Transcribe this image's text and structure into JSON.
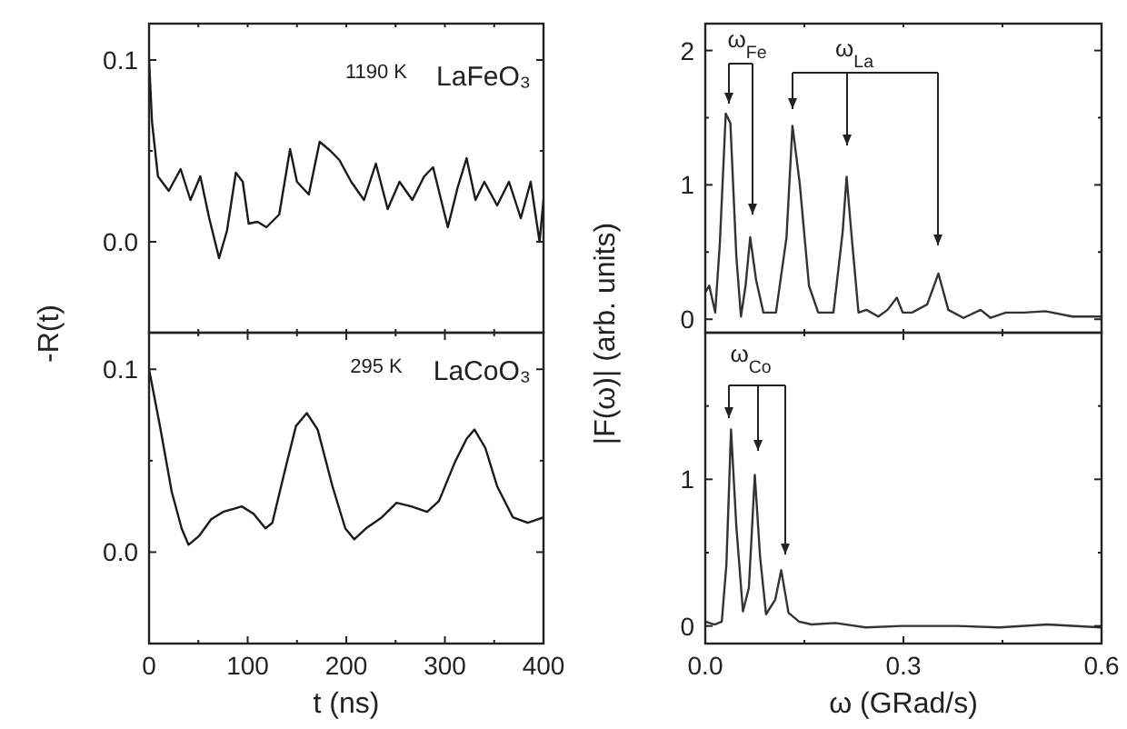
{
  "chart_data": [
    {
      "type": "line",
      "ylabel": "-R(t)",
      "annotations": [
        "1190 K",
        "LaFeO₃"
      ],
      "tick_labels": "y",
      "xlim": [
        0,
        400
      ],
      "xticks": [
        {
          "value": 0,
          "label": null
        },
        {
          "value": 50,
          "label": null
        },
        {
          "value": 100,
          "label": null
        },
        {
          "value": 150,
          "label": null
        },
        {
          "value": 200,
          "label": null
        },
        {
          "value": 250,
          "label": null
        },
        {
          "value": 300,
          "label": null
        },
        {
          "value": 350,
          "label": null
        },
        {
          "value": 400,
          "label": null
        }
      ],
      "ylim": [
        -0.05,
        0.12
      ],
      "yticks": [
        {
          "value": 0,
          "label": "0.0"
        },
        {
          "value": 0.05,
          "label": null
        },
        0.1
      ],
      "series": [
        {
          "color": "#1a1a1a",
          "x": [
            0,
            3,
            9,
            20,
            32,
            42,
            52,
            61,
            71,
            79,
            88,
            95,
            101,
            110,
            119,
            132,
            143,
            150,
            162,
            173,
            184,
            193,
            205,
            218,
            230,
            242,
            254,
            267,
            279,
            288,
            303,
            313,
            322,
            331,
            340,
            353,
            365,
            377,
            387,
            396,
            400
          ],
          "values": [
            0.1,
            0.066,
            0.036,
            0.028,
            0.04,
            0.023,
            0.036,
            0.013,
            -0.009,
            0.006,
            0.038,
            0.033,
            0.01,
            0.011,
            0.008,
            0.015,
            0.051,
            0.033,
            0.026,
            0.055,
            0.05,
            0.045,
            0.033,
            0.023,
            0.043,
            0.018,
            0.033,
            0.023,
            0.036,
            0.041,
            0.008,
            0.03,
            0.046,
            0.023,
            0.033,
            0.02,
            0.033,
            0.013,
            0.033,
            0,
            0.023
          ]
        }
      ]
    },
    {
      "type": "line",
      "ylabel": "|F(ω)| (arb. units)",
      "annotations": [
        "ω$_{Fe}$",
        "ω$_{La}$"
      ],
      "tick_labels": "y",
      "xlim": [
        0,
        0.6
      ],
      "xticks": [
        {
          "value": 0,
          "label": null
        },
        {
          "value": 0.15,
          "label": null
        },
        {
          "value": 0.3,
          "label": null
        },
        {
          "value": 0.45,
          "label": null
        },
        {
          "value": 0.6,
          "label": null
        }
      ],
      "ylim": [
        -0.1,
        2.2
      ],
      "yticks": [
        0,
        {
          "value": 0.5,
          "label": null
        },
        1,
        {
          "value": 1.5,
          "label": null
        },
        2
      ],
      "series": [
        {
          "color": "#333333",
          "x": [
            0,
            0.006,
            0.015,
            0.022,
            0.031,
            0.038,
            0.047,
            0.054,
            0.061,
            0.068,
            0.077,
            0.088,
            0.107,
            0.123,
            0.132,
            0.143,
            0.157,
            0.171,
            0.194,
            0.208,
            0.214,
            0.221,
            0.232,
            0.244,
            0.262,
            0.276,
            0.29,
            0.299,
            0.313,
            0.336,
            0.353,
            0.368,
            0.391,
            0.417,
            0.432,
            0.455,
            0.483,
            0.515,
            0.556,
            0.598
          ],
          "values": [
            0.2,
            0.25,
            0.05,
            0.56,
            1.53,
            1.46,
            0.47,
            0.02,
            0.25,
            0.61,
            0.29,
            0.05,
            0.05,
            0.61,
            1.44,
            1.01,
            0.25,
            0.05,
            0.05,
            0.65,
            1.06,
            0.65,
            0.05,
            0.07,
            0.02,
            0.07,
            0.16,
            0.05,
            0.05,
            0.11,
            0.34,
            0.07,
            0.01,
            0.07,
            0.01,
            0.05,
            0.05,
            0.06,
            0.02,
            0.02
          ]
        }
      ]
    },
    {
      "type": "line",
      "xlabel": "t (ns)",
      "annotations": [
        "295 K",
        "LaCoO₃"
      ],
      "xlim": [
        0,
        400
      ],
      "xticks": [
        0,
        {
          "value": 50,
          "label": null
        },
        100,
        {
          "value": 150,
          "label": null
        },
        200,
        {
          "value": 250,
          "label": null
        },
        300,
        {
          "value": 350,
          "label": null
        },
        400
      ],
      "ylim": [
        -0.05,
        0.12
      ],
      "yticks": [
        {
          "value": 0,
          "label": "0.0"
        },
        {
          "value": 0.05,
          "label": null
        },
        0.1
      ],
      "series": [
        {
          "color": "#1a1a1a",
          "x": [
            0,
            11,
            23,
            33,
            40,
            51,
            63,
            75,
            94,
            106,
            118,
            125,
            137,
            149,
            160,
            171,
            186,
            199,
            208,
            220,
            236,
            251,
            266,
            282,
            294,
            310,
            322,
            330,
            341,
            353,
            369,
            384,
            400
          ],
          "values": [
            0.1,
            0.069,
            0.033,
            0.013,
            0.004,
            0.009,
            0.018,
            0.022,
            0.025,
            0.021,
            0.013,
            0.016,
            0.043,
            0.069,
            0.076,
            0.067,
            0.036,
            0.013,
            0.007,
            0.013,
            0.019,
            0.027,
            0.025,
            0.022,
            0.028,
            0.049,
            0.062,
            0.067,
            0.057,
            0.036,
            0.019,
            0.016,
            0.019
          ]
        }
      ]
    },
    {
      "type": "line",
      "xlabel": "ω (GRad/s)",
      "annotations": [
        "ω$_{Co}$"
      ],
      "xlim": [
        0,
        0.6
      ],
      "xticks": [
        {
          "value": 0,
          "label": "0.0"
        },
        {
          "value": 0.15,
          "label": null
        },
        0.3,
        {
          "value": 0.45,
          "label": null
        },
        0.6
      ],
      "ylim": [
        -0.12,
        2.0
      ],
      "yticks": [
        0,
        {
          "value": 0.5,
          "label": null
        },
        1,
        {
          "value": 1.5,
          "label": null
        }
      ],
      "series": [
        {
          "color": "#333333",
          "x": [
            0,
            0.014,
            0.025,
            0.032,
            0.039,
            0.047,
            0.057,
            0.066,
            0.075,
            0.083,
            0.092,
            0.106,
            0.115,
            0.126,
            0.142,
            0.161,
            0.197,
            0.243,
            0.298,
            0.381,
            0.445,
            0.518,
            0.599
          ],
          "values": [
            0.03,
            0.01,
            0.03,
            0.42,
            1.34,
            0.68,
            0.1,
            0.26,
            1.03,
            0.47,
            0.08,
            0.18,
            0.38,
            0.09,
            0.03,
            0.01,
            0.02,
            -0.01,
            0,
            0,
            -0.01,
            0.01,
            -0.01
          ]
        }
      ]
    }
  ]
}
